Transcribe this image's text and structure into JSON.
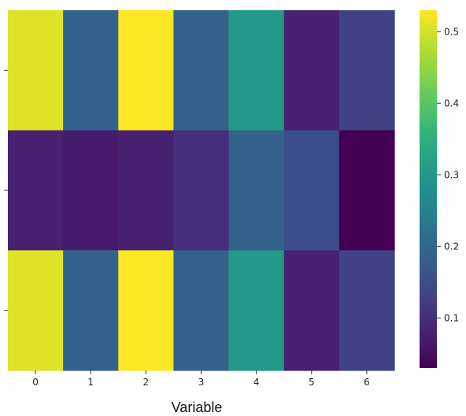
{
  "chart_data": {
    "type": "heatmap",
    "colormap": "viridis",
    "xlabel": "Variable",
    "ylabel": "",
    "x_ticks": [
      "0",
      "1",
      "2",
      "3",
      "4",
      "5",
      "6"
    ],
    "y_ticks": [
      "",
      "",
      ""
    ],
    "values": [
      [
        0.51,
        0.19,
        0.53,
        0.19,
        0.3,
        0.08,
        0.13
      ],
      [
        0.08,
        0.07,
        0.08,
        0.1,
        0.19,
        0.15,
        0.03
      ],
      [
        0.51,
        0.19,
        0.53,
        0.19,
        0.3,
        0.08,
        0.13
      ]
    ],
    "colorbar": {
      "range": [
        0.03,
        0.53
      ],
      "ticks": [
        "0.1",
        "0.2",
        "0.3",
        "0.4",
        "0.5"
      ],
      "tick_values": [
        0.1,
        0.2,
        0.3,
        0.4,
        0.5
      ]
    }
  }
}
